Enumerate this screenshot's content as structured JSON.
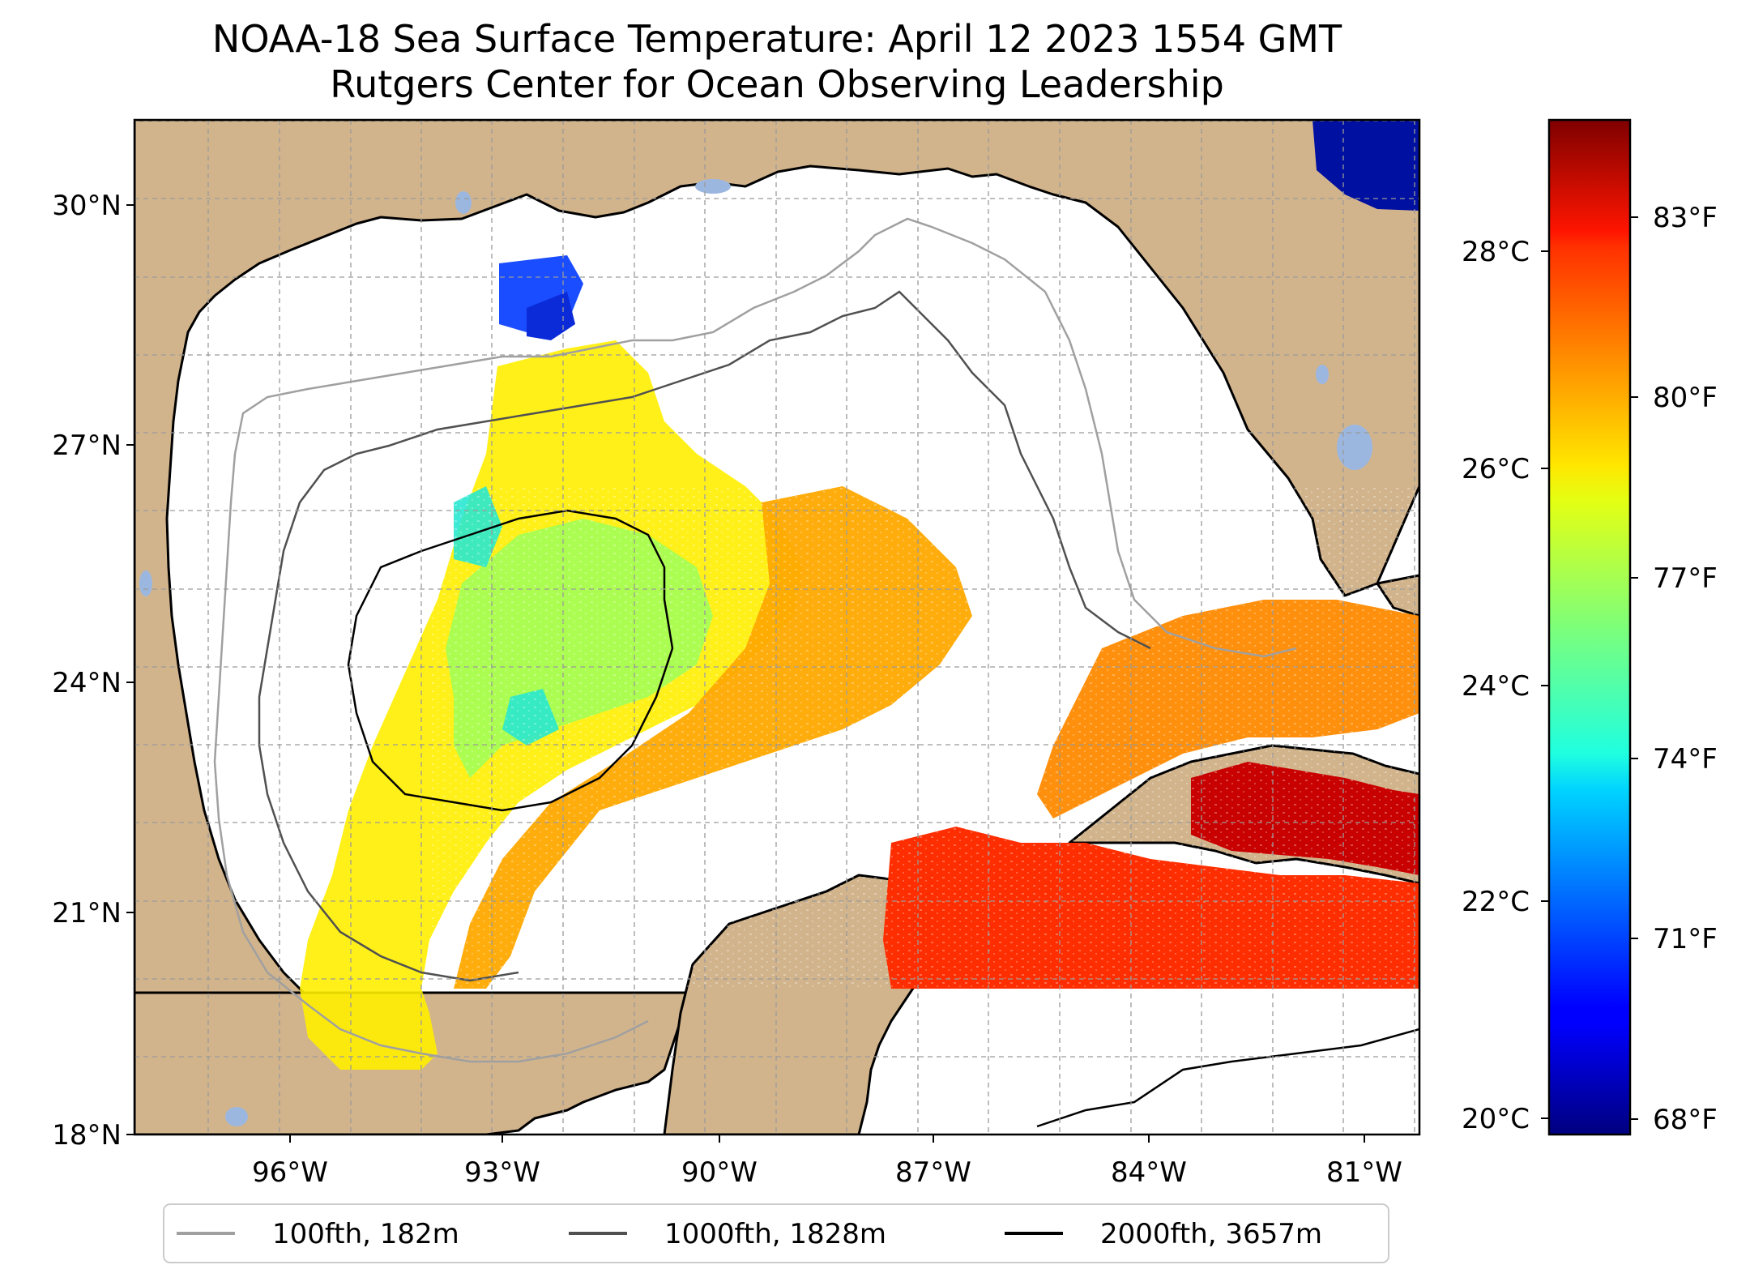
{
  "title": {
    "line1": "NOAA-18 Sea Surface Temperature: April 12 2023 1554 GMT",
    "line2": "Rutgers Center for Ocean Observing Leadership"
  },
  "map": {
    "region": "Gulf of Mexico",
    "lat_range": [
      18,
      31
    ],
    "lon_range": [
      -98.3,
      -80.6
    ],
    "lat_ticks": [
      {
        "value": 30,
        "label": "30°N"
      },
      {
        "value": 27,
        "label": "27°N"
      },
      {
        "value": 24,
        "label": "24°N"
      },
      {
        "value": 21,
        "label": "21°N"
      },
      {
        "value": 18,
        "label": "18°N"
      }
    ],
    "lon_ticks": [
      {
        "value": -96,
        "label": "96°W"
      },
      {
        "value": -93,
        "label": "93°W"
      },
      {
        "value": -90,
        "label": "90°W"
      },
      {
        "value": -87,
        "label": "87°W"
      },
      {
        "value": -84,
        "label": "84°W"
      },
      {
        "value": -81,
        "label": "81°W"
      }
    ],
    "gridlines": true,
    "colors": {
      "land": "#d2b48c",
      "lake": "#9bb7e0",
      "no_data": "#ffffff",
      "isobath_100": "#a0a0a0",
      "isobath_1000": "#505050",
      "isobath_2000": "#000000"
    }
  },
  "colorbar": {
    "colormap": "jet",
    "celsius_range": [
      19.8,
      30.2
    ],
    "celsius_ticks": [
      {
        "value": 20,
        "label": "20°C"
      },
      {
        "value": 22,
        "label": "22°C"
      },
      {
        "value": 24,
        "label": "24°C"
      },
      {
        "value": 26,
        "label": "26°C"
      },
      {
        "value": 28,
        "label": "28°C"
      }
    ],
    "fahrenheit_ticks": [
      {
        "value": 68,
        "label": "68°F"
      },
      {
        "value": 71,
        "label": "71°F"
      },
      {
        "value": 74,
        "label": "74°F"
      },
      {
        "value": 77,
        "label": "77°F"
      },
      {
        "value": 80,
        "label": "80°F"
      },
      {
        "value": 83,
        "label": "83°F"
      }
    ]
  },
  "legend": {
    "placement": "bottom-center",
    "items": [
      {
        "label": "100fth, 182m",
        "color": "#a0a0a0"
      },
      {
        "label": "1000fth, 1828m",
        "color": "#505050"
      },
      {
        "label": "2000fth, 3657m",
        "color": "#000000"
      }
    ]
  }
}
